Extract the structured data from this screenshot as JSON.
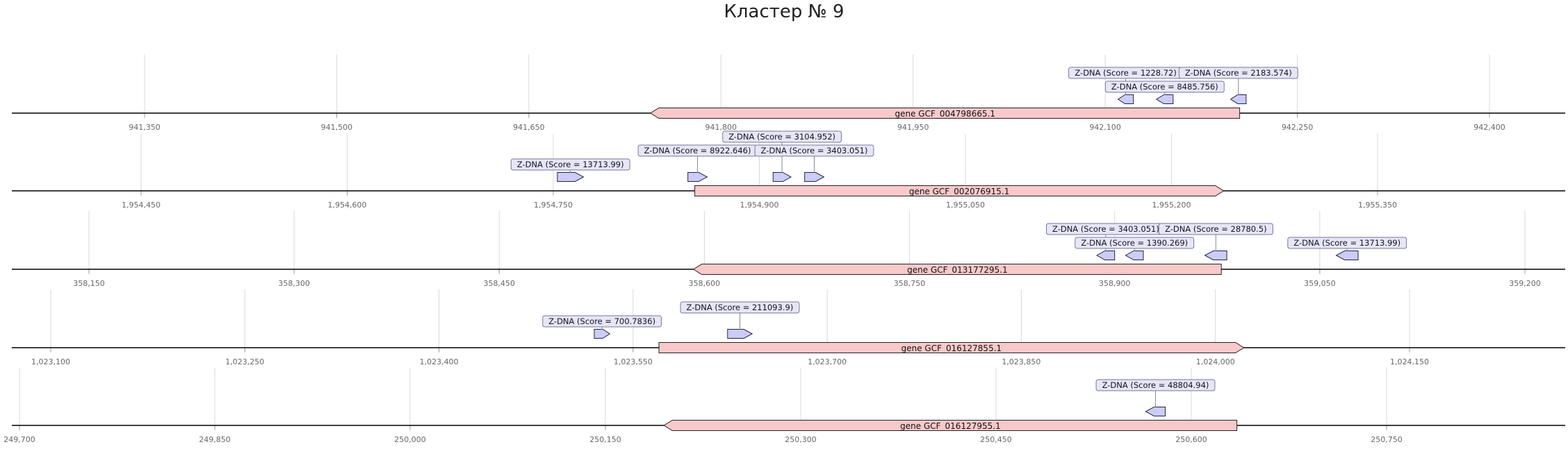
{
  "title": "Кластер № 9",
  "colors": {
    "gene_fill": "#f9c9c9",
    "zdna_fill": "#cccdf7",
    "label_bg": "#e6e6f7",
    "axis": "#000000",
    "grid": "#d9d9d9",
    "tick_text": "#666666"
  },
  "tracks": [
    {
      "ticks": [
        "941,350",
        "941,500",
        "941,650",
        "941,800",
        "941,950",
        "942,100",
        "942,250",
        "942,400"
      ],
      "tick_values": [
        941350,
        941500,
        941650,
        941800,
        941950,
        942100,
        942250,
        942400
      ],
      "gene": {
        "label": "gene GCF_004798665.1",
        "start": 941745,
        "end": 942205,
        "strand": "-"
      },
      "zdna": [
        {
          "label": "Z-DNA (Score = 1228.72)",
          "start": 942110,
          "end": 942122,
          "strand": "-",
          "level": 2
        },
        {
          "label": "Z-DNA (Score = 8485.756)",
          "start": 942140,
          "end": 942153,
          "strand": "-",
          "level": 1
        },
        {
          "label": "Z-DNA (Score = 2183.574)",
          "start": 942198,
          "end": 942210,
          "strand": "-",
          "level": 2
        }
      ]
    },
    {
      "ticks": [
        "1,954,450",
        "1,954,600",
        "1,954,750",
        "1,954,900",
        "1,955,050",
        "1,955,200",
        "1,955,350"
      ],
      "tick_values": [
        1954450,
        1954600,
        1954750,
        1954900,
        1955050,
        1955200,
        1955350
      ],
      "gene": {
        "label": "gene GCF_002076915.1",
        "start": 1954853,
        "end": 1955238,
        "strand": "+"
      },
      "zdna": [
        {
          "label": "Z-DNA (Score = 13713.99)",
          "start": 1954753,
          "end": 1954772,
          "strand": "+",
          "level": 1
        },
        {
          "label": "Z-DNA (Score = 8922.646)",
          "start": 1954848,
          "end": 1954862,
          "strand": "+",
          "level": 2
        },
        {
          "label": "Z-DNA (Score = 3104.952)",
          "start": 1954910,
          "end": 1954923,
          "strand": "+",
          "level": 3
        },
        {
          "label": "Z-DNA (Score = 3403.051)",
          "start": 1954933,
          "end": 1954947,
          "strand": "+",
          "level": 2
        }
      ]
    },
    {
      "ticks": [
        "358,150",
        "358,300",
        "358,450",
        "358,600",
        "358,750",
        "358,900",
        "359,050",
        "359,200"
      ],
      "tick_values": [
        358150,
        358300,
        358450,
        358600,
        358750,
        358900,
        359050,
        359200
      ],
      "gene": {
        "label": "gene GCF_013177295.1",
        "start": 358592,
        "end": 358978,
        "strand": "-"
      },
      "zdna": [
        {
          "label": "Z-DNA (Score = 3403.051)",
          "start": 358887,
          "end": 358900,
          "strand": "-",
          "level": 2
        },
        {
          "label": "Z-DNA (Score = 1390.269)",
          "start": 358908,
          "end": 358921,
          "strand": "-",
          "level": 1
        },
        {
          "label": "Z-DNA (Score = 28780.5)",
          "start": 358966,
          "end": 358982,
          "strand": "-",
          "level": 2
        },
        {
          "label": "Z-DNA (Score = 13713.99)",
          "start": 359062,
          "end": 359078,
          "strand": "-",
          "level": 1
        }
      ]
    },
    {
      "ticks": [
        "1,023,100",
        "1,023,250",
        "1,023,400",
        "1,023,550",
        "1,023,700",
        "1,023,850",
        "1,024,000",
        "1,024,150"
      ],
      "tick_values": [
        1023100,
        1023250,
        1023400,
        1023550,
        1023700,
        1023850,
        1024000,
        1024150
      ],
      "gene": {
        "label": "gene GCF_016127855.1",
        "start": 1023570,
        "end": 1024022,
        "strand": "+"
      },
      "zdna": [
        {
          "label": "Z-DNA (Score = 700.7836)",
          "start": 1023520,
          "end": 1023532,
          "strand": "+",
          "level": 1
        },
        {
          "label": "Z-DNA (Score = 211093.9)",
          "start": 1023623,
          "end": 1023642,
          "strand": "+",
          "level": 2
        }
      ]
    },
    {
      "ticks": [
        "249,700",
        "249,850",
        "250,000",
        "250,150",
        "250,300",
        "250,450",
        "250,600",
        "250,750"
      ],
      "tick_values": [
        249700,
        249850,
        250000,
        250150,
        250300,
        250450,
        250600,
        250750
      ],
      "gene": {
        "label": "gene GCF_016127955.1",
        "start": 250195,
        "end": 250635,
        "strand": "-"
      },
      "zdna": [
        {
          "label": "Z-DNA (Score = 48804.94)",
          "start": 250565,
          "end": 250580,
          "strand": "-",
          "level": 2
        }
      ]
    }
  ]
}
